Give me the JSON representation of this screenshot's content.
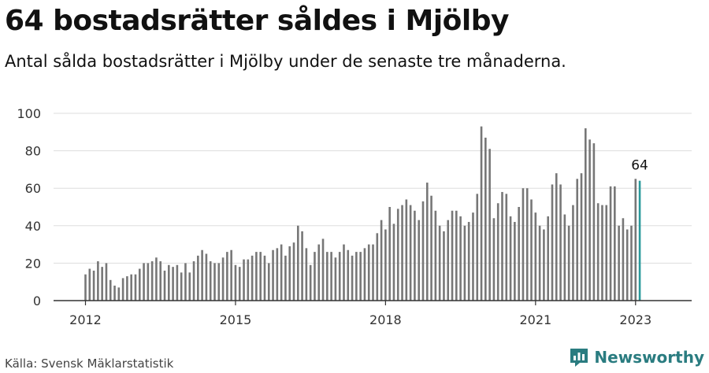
{
  "title": "64 bostadsrätter såldes i Mjölby",
  "subtitle": "Antal sålda bostadsrätter i Mjölby under de senaste tre månaderna.",
  "source": "Källa: Svensk Mäklarstatistik",
  "brand": {
    "name": "Newsworthy",
    "icon": "newsworthy-logo-icon"
  },
  "colors": {
    "bar": "#777777",
    "highlight": "#2b9a9c",
    "grid": "#dddddd",
    "axis": "#333333",
    "brand": "#2a7c80"
  },
  "chart_data": {
    "type": "bar",
    "title": "64 bostadsrätter såldes i Mjölby",
    "xlabel": "",
    "ylabel": "",
    "ylim": [
      0,
      100
    ],
    "yticks": [
      0,
      20,
      40,
      60,
      80,
      100
    ],
    "xticks": [
      {
        "label": "2012",
        "index": 0
      },
      {
        "label": "2015",
        "index": 36
      },
      {
        "label": "2018",
        "index": 72
      },
      {
        "label": "2021",
        "index": 108
      },
      {
        "label": "2023",
        "index": 132
      }
    ],
    "grid": true,
    "frequency": "monthly",
    "first_period": "2012-01",
    "highlight_last": true,
    "highlight_label": "64",
    "values": [
      14,
      17,
      16,
      21,
      18,
      20,
      11,
      8,
      7,
      12,
      13,
      14,
      14,
      17,
      20,
      20,
      21,
      23,
      21,
      16,
      19,
      18,
      19,
      15,
      20,
      15,
      21,
      24,
      27,
      25,
      21,
      20,
      20,
      23,
      26,
      27,
      19,
      18,
      22,
      22,
      24,
      26,
      26,
      24,
      20,
      27,
      28,
      30,
      24,
      29,
      31,
      40,
      37,
      28,
      19,
      26,
      30,
      33,
      26,
      26,
      23,
      26,
      30,
      27,
      24,
      26,
      26,
      28,
      30,
      30,
      36,
      43,
      38,
      50,
      41,
      49,
      51,
      54,
      51,
      48,
      43,
      53,
      63,
      56,
      48,
      40,
      37,
      43,
      48,
      48,
      45,
      40,
      42,
      47,
      57,
      93,
      87,
      81,
      44,
      52,
      58,
      57,
      45,
      42,
      50,
      60,
      60,
      54,
      47,
      40,
      38,
      45,
      62,
      68,
      62,
      46,
      40,
      51,
      65,
      68,
      92,
      86,
      84,
      52,
      51,
      51,
      61,
      61,
      40,
      44,
      38,
      40,
      65,
      64
    ]
  }
}
